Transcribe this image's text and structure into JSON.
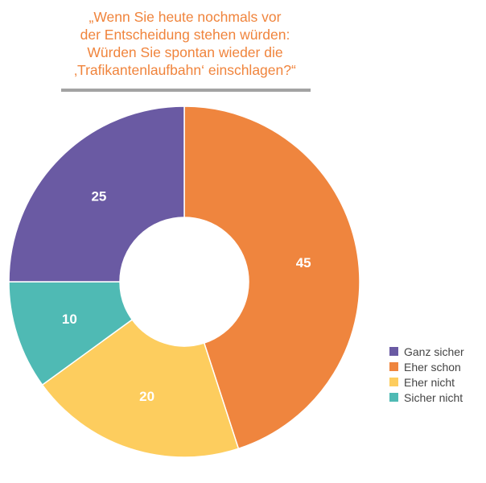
{
  "chart_data": {
    "type": "pie",
    "title_lines": [
      "„Wenn Sie heute nochmals vor",
      "der Entscheidung stehen würden:",
      "Würden Sie spontan wieder die",
      "‚Trafikantenlaufbahn‘ einschlagen?“"
    ],
    "categories": [
      "Ganz sicher",
      "Eher schon",
      "Eher nicht",
      "Sicher nicht"
    ],
    "values": [
      25,
      45,
      20,
      10
    ],
    "colors": [
      "#6a5aa3",
      "#ef853e",
      "#fdcd5e",
      "#4fbab4"
    ],
    "donut": true,
    "legend_position": "bottom-right",
    "title_color": "#f0843c",
    "rule_color": "#a3a3a3"
  }
}
